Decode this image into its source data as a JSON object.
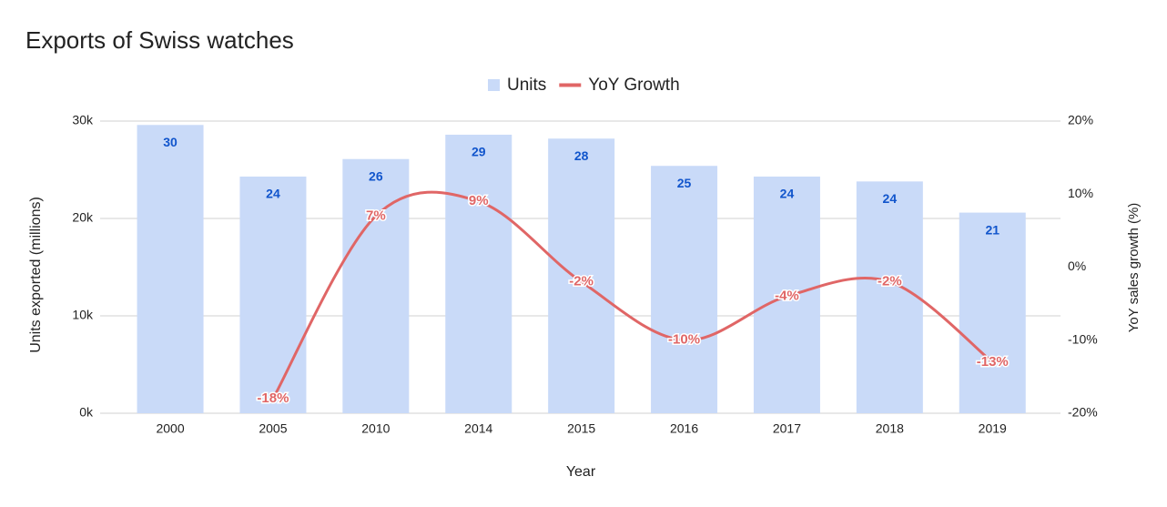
{
  "chart_data": {
    "type": "combo",
    "title": "Exports of Swiss watches",
    "x_label": "Year",
    "y_label": "Units exported (millions)",
    "y2_label": "YoY sales growth (%)",
    "categories": [
      "2000",
      "2005",
      "2010",
      "2014",
      "2015",
      "2016",
      "2017",
      "2018",
      "2019"
    ],
    "series": [
      {
        "name": "Units",
        "type": "bar",
        "color": "#c9daf8",
        "label_color": "#1155cc",
        "values": [
          29600,
          24300,
          26100,
          28600,
          28200,
          25400,
          24300,
          23800,
          20600
        ],
        "value_labels": [
          "30",
          "24",
          "26",
          "29",
          "28",
          "25",
          "24",
          "24",
          "21"
        ]
      },
      {
        "name": "YoY Growth",
        "type": "line",
        "axis": "y2",
        "color": "#e06666",
        "smooth": true,
        "values": [
          null,
          -18,
          7,
          9,
          -2,
          -10,
          -4,
          -2,
          -13
        ],
        "value_labels": [
          null,
          "-18%",
          "7%",
          "9%",
          "-2%",
          "-10%",
          "-4%",
          "-2%",
          "-13%"
        ]
      }
    ],
    "ylim": [
      0,
      30000
    ],
    "yticks": [
      {
        "value": 0,
        "label": "0k"
      },
      {
        "value": 10000,
        "label": "10k"
      },
      {
        "value": 20000,
        "label": "20k"
      },
      {
        "value": 30000,
        "label": "30k"
      }
    ],
    "y2lim": [
      -20,
      20
    ],
    "y2ticks": [
      {
        "value": -20,
        "label": "-20%"
      },
      {
        "value": -10,
        "label": "-10%"
      },
      {
        "value": 0,
        "label": "0%"
      },
      {
        "value": 10,
        "label": "10%"
      },
      {
        "value": 20,
        "label": "20%"
      }
    ],
    "grid": true,
    "legend": "top"
  }
}
